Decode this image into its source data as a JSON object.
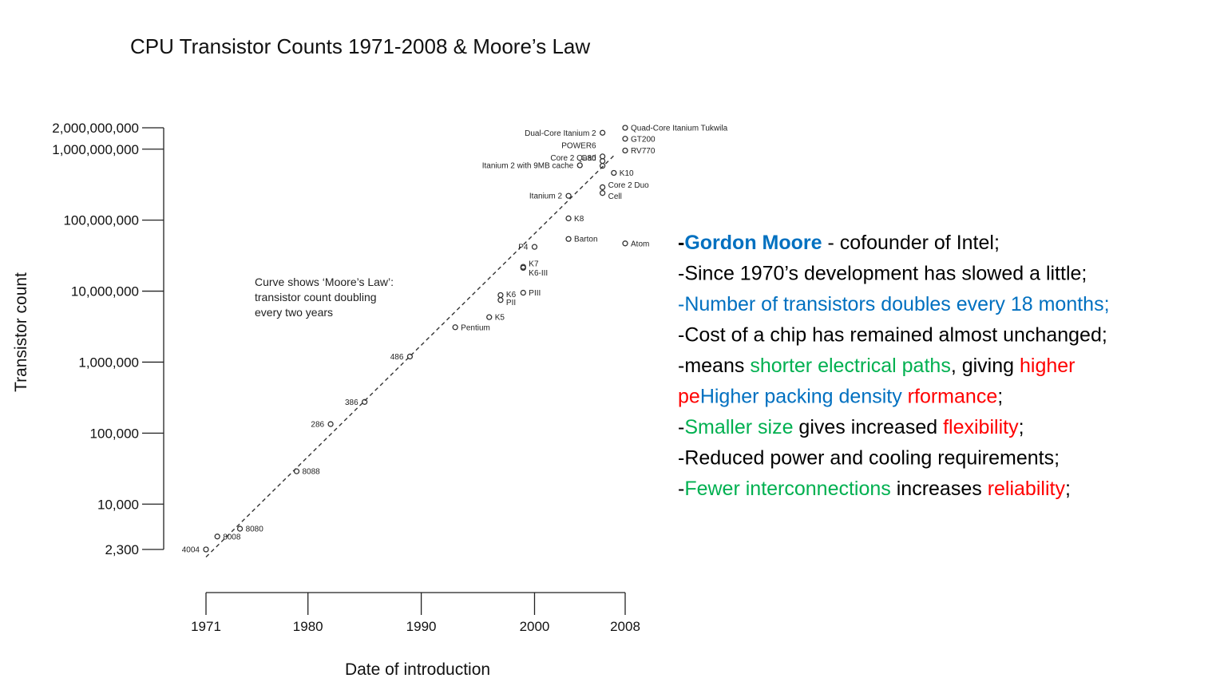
{
  "chart_data": {
    "type": "scatter",
    "title": "CPU Transistor Counts 1971-2008 & Moore’s Law",
    "x_label": "Date of introduction",
    "y_label": "Transistor count",
    "annotation": [
      "Curve shows ‘Moore’s Law’:",
      "transistor count doubling",
      "every two years"
    ],
    "log_y": true,
    "color": "#333333",
    "xlim": [
      1971,
      2008
    ],
    "xticks": [
      1971,
      1980,
      1990,
      2000,
      2008
    ],
    "ylim": [
      2300,
      2000000000
    ],
    "yticks": [
      {
        "value": 2300,
        "label": "2,300"
      },
      {
        "value": 10000,
        "label": "10,000"
      },
      {
        "value": 100000,
        "label": "100,000"
      },
      {
        "value": 1000000,
        "label": "1,000,000"
      },
      {
        "value": 10000000,
        "label": "10,000,000"
      },
      {
        "value": 100000000,
        "label": "100,000,000"
      },
      {
        "value": 1000000000,
        "label": "1,000,000,000"
      },
      {
        "value": 2000000000,
        "label": "2,000,000,000"
      }
    ],
    "labels": [
      "4004",
      "8008",
      "8080",
      "8088",
      "286",
      "386",
      "486",
      "Pentium",
      "K5",
      "K6",
      "PII",
      "PIII",
      "K6-III",
      "K7",
      "P4",
      "Barton",
      "K8",
      "Itanium 2",
      "Itanium 2 with 9MB cache",
      "Cell",
      "Core 2 Duo",
      "Core 2 Quad",
      "G80",
      "POWER6",
      "Dual-Core Itanium 2",
      "K10",
      "RV770",
      "GT200",
      "Quad-Core Itanium Tukwila",
      "Atom"
    ],
    "x": [
      1971,
      1972,
      1974,
      1979,
      1982,
      1985,
      1989,
      1993,
      1996,
      1997,
      1997,
      1999,
      1999,
      1999,
      2000,
      2003,
      2003,
      2003,
      2004,
      2006,
      2006,
      2006,
      2006,
      2006,
      2006,
      2007,
      2008,
      2008,
      2008,
      2008
    ],
    "values": [
      2300,
      3500,
      4500,
      29000,
      134000,
      275000,
      1200000,
      3100000,
      4300000,
      8800000,
      7500000,
      9500000,
      21300000,
      22000000,
      42000000,
      54300000,
      105900000,
      220000000,
      592000000,
      241000000,
      291000000,
      582000000,
      681000000,
      789000000,
      1700000000,
      463000000,
      956000000,
      1400000000,
      2000000000,
      47000000
    ],
    "trend_line": {
      "x": [
        1971,
        2007
      ],
      "values": [
        1800,
        810000000
      ]
    }
  },
  "bullets": [
    [
      {
        "text": "-",
        "color": "#000000",
        "bold": true
      },
      {
        "text": "Gordon Moore",
        "color": "#0070c0",
        "bold": true
      },
      {
        "text": " - cofounder of Intel;",
        "color": "#000000"
      }
    ],
    [
      {
        "text": "-Since 1970’s development has slowed a little;",
        "color": "#000000"
      }
    ],
    [
      {
        "text": "-Number of transistors doubles every 18 months;",
        "color": "#0070c0"
      }
    ],
    [
      {
        "text": "-Cost of a chip has remained almost unchanged;",
        "color": "#000000"
      }
    ],
    [
      {
        "text": "-means ",
        "color": "#000000"
      },
      {
        "text": "shorter electrical paths",
        "color": "#00b050"
      },
      {
        "text": ", giving ",
        "color": "#000000"
      },
      {
        "text": "higher",
        "color": "#ff0000"
      }
    ],
    [
      {
        "text": "pe",
        "color": "#ff0000"
      },
      {
        "text": "Higher packing density",
        "color": "#0070c0"
      },
      {
        "text": " rformance",
        "color": "#ff0000"
      },
      {
        "text": ";",
        "color": "#000000"
      }
    ],
    [
      {
        "text": "-",
        "color": "#000000"
      },
      {
        "text": "Smaller size",
        "color": "#00b050"
      },
      {
        "text": " gives increased ",
        "color": "#000000"
      },
      {
        "text": "flexibility",
        "color": "#ff0000"
      },
      {
        "text": ";",
        "color": "#000000"
      }
    ],
    [
      {
        "text": "-Reduced power and cooling requirements;",
        "color": "#000000"
      }
    ],
    [
      {
        "text": "-",
        "color": "#000000"
      },
      {
        "text": "Fewer interconnections",
        "color": "#00b050"
      },
      {
        "text": " increases ",
        "color": "#000000"
      },
      {
        "text": "reliability",
        "color": "#ff0000"
      },
      {
        "text": ";",
        "color": "#000000"
      }
    ]
  ]
}
